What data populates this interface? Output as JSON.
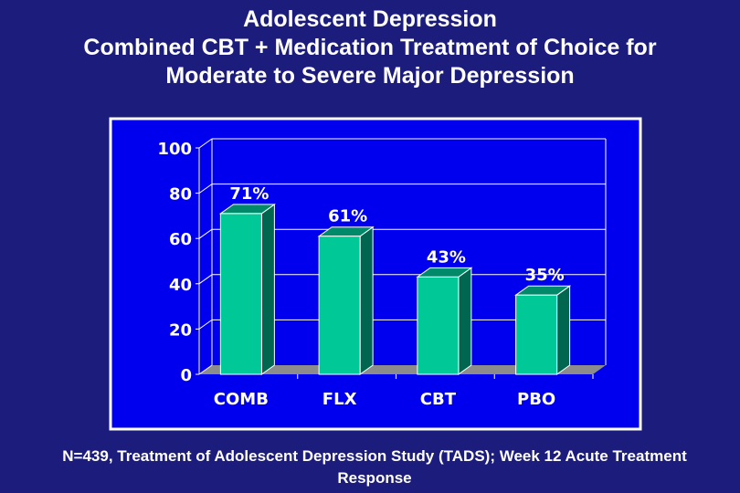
{
  "title_lines": [
    "Adolescent Depression",
    "Combined CBT + Medication Treatment of Choice for",
    "Moderate to Severe Major Depression"
  ],
  "footer": "N=439, Treatment of Adolescent Depression Study (TADS); Week 12 Acute Treatment Response",
  "colors": {
    "background": "#1c1c7c",
    "plot_background": "#0000ee",
    "bar_front": "#00c896",
    "bar_side": "#006650",
    "bar_top": "#008a6a",
    "floor": "#8c8c8c"
  },
  "chart_data": {
    "type": "bar",
    "style": "3d",
    "categories": [
      "COMB",
      "FLX",
      "CBT",
      "PBO"
    ],
    "values": [
      71,
      61,
      43,
      35
    ],
    "data_labels": [
      "71%",
      "61%",
      "43%",
      "35%"
    ],
    "yticks": [
      "0",
      "20",
      "40",
      "60",
      "80",
      "100"
    ],
    "ylim": [
      0,
      100
    ],
    "grid": true
  }
}
